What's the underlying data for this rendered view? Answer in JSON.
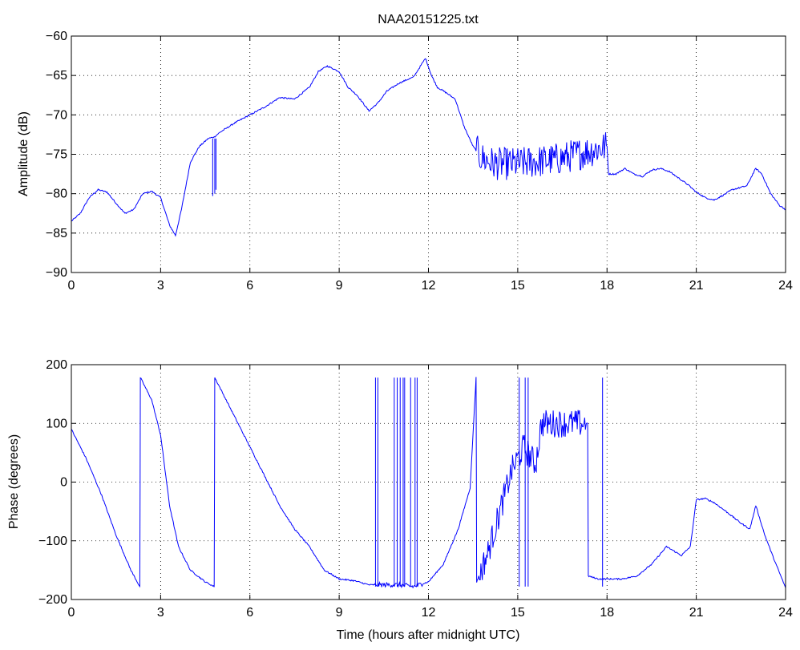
{
  "title": "NAA20151225.txt",
  "chart_data": [
    {
      "type": "line",
      "title": "NAA20151225.txt",
      "xlabel": "",
      "ylabel": "Amplitude (dB)",
      "xlim": [
        0,
        24
      ],
      "ylim": [
        -90,
        -60
      ],
      "xticks": [
        0,
        3,
        6,
        9,
        12,
        15,
        18,
        21,
        24
      ],
      "yticks": [
        -90,
        -85,
        -80,
        -75,
        -70,
        -65,
        -60
      ],
      "grid": true,
      "color": "#0000ff",
      "series": [
        {
          "x": [
            0,
            0.3,
            0.6,
            0.9,
            1.2,
            1.5,
            1.8,
            2.1,
            2.4,
            2.7,
            3.0,
            3.3,
            3.5,
            3.7,
            4.0,
            4.3,
            4.6,
            4.8,
            5.0,
            5.5,
            6.0,
            6.5,
            7.0,
            7.5,
            8.0,
            8.3,
            8.6,
            9.0,
            9.3,
            9.6,
            10.0,
            10.3,
            10.6,
            11.0,
            11.3,
            11.5,
            11.7,
            11.9,
            12.1,
            12.3,
            12.6,
            12.9,
            13.2,
            13.5,
            13.8,
            14.2,
            14.6,
            15.0,
            15.5,
            16.0,
            16.5,
            17.0,
            17.5,
            18.0,
            18.05,
            18.3,
            18.6,
            18.9,
            19.2,
            19.5,
            19.8,
            20.1,
            20.4,
            20.7,
            21.0,
            21.3,
            21.6,
            21.9,
            22.2,
            22.5,
            22.7,
            22.9,
            23.0,
            23.2,
            23.5,
            23.8,
            24.0
          ],
          "y": [
            -83.5,
            -82.5,
            -80.5,
            -79.5,
            -79.8,
            -81.2,
            -82.5,
            -82.0,
            -80.0,
            -79.7,
            -80.5,
            -84.0,
            -85.3,
            -82.0,
            -76.0,
            -74.0,
            -73.0,
            -72.8,
            -72.2,
            -71.0,
            -70.0,
            -69.0,
            -67.8,
            -68.0,
            -66.5,
            -64.5,
            -63.8,
            -64.5,
            -66.5,
            -67.5,
            -69.5,
            -68.5,
            -67.0,
            -66.0,
            -65.5,
            -65.2,
            -64.0,
            -62.8,
            -65.0,
            -66.5,
            -67.2,
            -68.0,
            -71.5,
            -74.0,
            -75.5,
            -76.2,
            -76.2,
            -76.2,
            -76.0,
            -75.8,
            -75.5,
            -75.0,
            -74.5,
            -74.0,
            -77.5,
            -77.5,
            -76.8,
            -77.5,
            -77.8,
            -77.0,
            -76.8,
            -77.2,
            -78.0,
            -78.8,
            -79.8,
            -80.5,
            -80.8,
            -80.2,
            -79.5,
            -79.2,
            -79.0,
            -77.5,
            -76.8,
            -77.5,
            -80.0,
            -81.5,
            -82.0
          ]
        }
      ]
    },
    {
      "type": "line",
      "title": "",
      "xlabel": "Time (hours after midnight UTC)",
      "ylabel": "Phase (degrees)",
      "xlim": [
        0,
        24
      ],
      "ylim": [
        -200,
        200
      ],
      "xticks": [
        0,
        3,
        6,
        9,
        12,
        15,
        18,
        21,
        24
      ],
      "yticks": [
        -200,
        -100,
        0,
        100,
        200
      ],
      "grid": true,
      "color": "#0000ff",
      "series": [
        {
          "x": [
            0,
            0.5,
            1.0,
            1.5,
            2.0,
            2.3,
            2.32,
            2.7,
            3.0,
            3.3,
            3.6,
            4.0,
            4.5,
            4.8,
            4.82,
            5.5,
            6.0,
            6.5,
            7.0,
            7.5,
            8.0,
            8.5,
            9.0,
            9.5,
            10.0,
            10.5,
            11.0,
            11.5,
            12.0,
            12.5,
            13.0,
            13.4,
            13.6,
            13.62,
            14.0,
            14.4,
            14.8,
            15.2,
            15.6,
            15.8,
            16.0,
            16.5,
            17.0,
            17.35,
            17.37,
            17.7,
            18.0,
            18.5,
            19.0,
            19.5,
            20.0,
            20.5,
            20.8,
            21.0,
            21.3,
            21.6,
            22.0,
            22.5,
            22.8,
            23.0,
            23.3,
            23.6,
            24.0
          ],
          "y": [
            90,
            40,
            -20,
            -90,
            -150,
            -178,
            178,
            140,
            80,
            -40,
            -110,
            -150,
            -170,
            -178,
            178,
            110,
            60,
            10,
            -40,
            -80,
            -110,
            -150,
            -165,
            -168,
            -175,
            -175,
            -175,
            -178,
            -170,
            -140,
            -80,
            -10,
            178,
            -170,
            -120,
            -50,
            20,
            60,
            30,
            100,
            100,
            100,
            100,
            100,
            -160,
            -165,
            -165,
            -165,
            -160,
            -140,
            -110,
            -125,
            -110,
            -30,
            -28,
            -35,
            -50,
            -70,
            -80,
            -40,
            -90,
            -130,
            -180
          ]
        }
      ]
    }
  ]
}
